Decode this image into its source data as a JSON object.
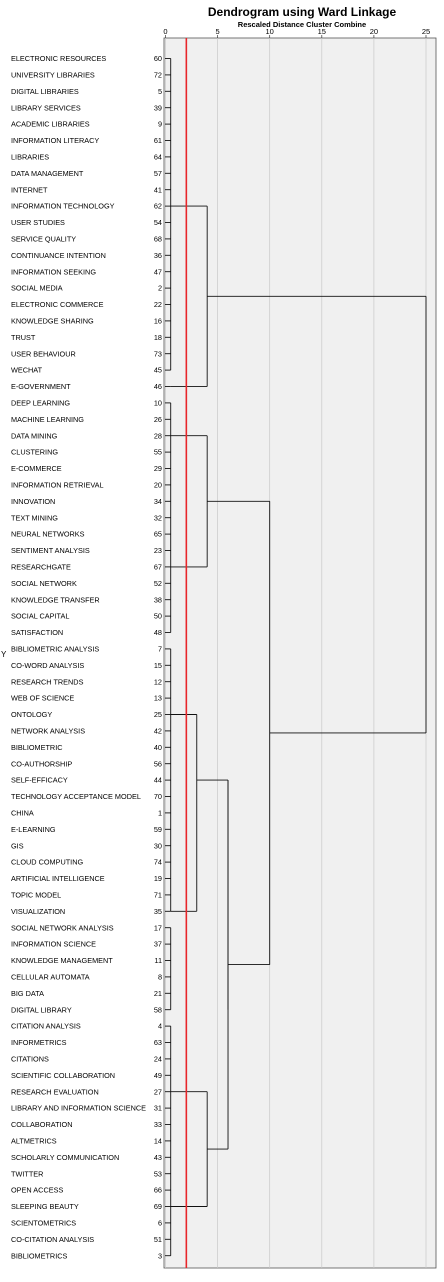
{
  "chart_data": {
    "type": "dendrogram",
    "title": "Dendrogram using Ward Linkage",
    "subtitle": "Rescaled Distance Cluster Combine",
    "ylabel": "Y",
    "xlim": [
      0,
      25
    ],
    "xticks": [
      "0",
      "5",
      "10",
      "15",
      "20",
      "25"
    ],
    "grid": true,
    "reference_line_x": 2,
    "reference_line_color": "#e8262b",
    "leaves": [
      {
        "label": "ELECTRONIC RESOURCES",
        "id": "60"
      },
      {
        "label": "UNIVERSITY LIBRARIES",
        "id": "72"
      },
      {
        "label": "DIGITAL LIBRARIES",
        "id": "5"
      },
      {
        "label": "LIBRARY SERVICES",
        "id": "39"
      },
      {
        "label": "ACADEMIC LIBRARIES",
        "id": "9"
      },
      {
        "label": "INFORMATION LITERACY",
        "id": "61"
      },
      {
        "label": "LIBRARIES",
        "id": "64"
      },
      {
        "label": "DATA MANAGEMENT",
        "id": "57"
      },
      {
        "label": "INTERNET",
        "id": "41"
      },
      {
        "label": "INFORMATION TECHNOLOGY",
        "id": "62"
      },
      {
        "label": "USER STUDIES",
        "id": "54"
      },
      {
        "label": "SERVICE QUALITY",
        "id": "68"
      },
      {
        "label": "CONTINUANCE INTENTION",
        "id": "36"
      },
      {
        "label": "INFORMATION SEEKING",
        "id": "47"
      },
      {
        "label": "SOCIAL MEDIA",
        "id": "2"
      },
      {
        "label": "ELECTRONIC COMMERCE",
        "id": "22"
      },
      {
        "label": "KNOWLEDGE SHARING",
        "id": "16"
      },
      {
        "label": "TRUST",
        "id": "18"
      },
      {
        "label": "USER BEHAVIOUR",
        "id": "73"
      },
      {
        "label": "WECHAT",
        "id": "45"
      },
      {
        "label": "E-GOVERNMENT",
        "id": "46"
      },
      {
        "label": "DEEP LEARNING",
        "id": "10"
      },
      {
        "label": "MACHINE LEARNING",
        "id": "26"
      },
      {
        "label": "DATA MINING",
        "id": "28"
      },
      {
        "label": "CLUSTERING",
        "id": "55"
      },
      {
        "label": "E-COMMERCE",
        "id": "29"
      },
      {
        "label": "INFORMATION RETRIEVAL",
        "id": "20"
      },
      {
        "label": "INNOVATION",
        "id": "34"
      },
      {
        "label": "TEXT MINING",
        "id": "32"
      },
      {
        "label": "NEURAL NETWORKS",
        "id": "65"
      },
      {
        "label": "SENTIMENT ANALYSIS",
        "id": "23"
      },
      {
        "label": "RESEARCHGATE",
        "id": "67"
      },
      {
        "label": "SOCIAL NETWORK",
        "id": "52"
      },
      {
        "label": "KNOWLEDGE TRANSFER",
        "id": "38"
      },
      {
        "label": "SOCIAL CAPITAL",
        "id": "50"
      },
      {
        "label": "SATISFACTION",
        "id": "48"
      },
      {
        "label": "BIBLIOMETRIC ANALYSIS",
        "id": "7"
      },
      {
        "label": "CO-WORD ANALYSIS",
        "id": "15"
      },
      {
        "label": "RESEARCH TRENDS",
        "id": "12"
      },
      {
        "label": "WEB OF SCIENCE",
        "id": "13"
      },
      {
        "label": "ONTOLOGY",
        "id": "25"
      },
      {
        "label": "NETWORK ANALYSIS",
        "id": "42"
      },
      {
        "label": "BIBLIOMETRIC",
        "id": "40"
      },
      {
        "label": "CO-AUTHORSHIP",
        "id": "56"
      },
      {
        "label": "SELF-EFFICACY",
        "id": "44"
      },
      {
        "label": "TECHNOLOGY ACCEPTANCE MODEL",
        "id": "70"
      },
      {
        "label": "CHINA",
        "id": "1"
      },
      {
        "label": "E-LEARNING",
        "id": "59"
      },
      {
        "label": "GIS",
        "id": "30"
      },
      {
        "label": "CLOUD COMPUTING",
        "id": "74"
      },
      {
        "label": "ARTIFICIAL INTELLIGENCE",
        "id": "19"
      },
      {
        "label": "TOPIC MODEL",
        "id": "71"
      },
      {
        "label": "VISUALIZATION",
        "id": "35"
      },
      {
        "label": "SOCIAL NETWORK ANALYSIS",
        "id": "17"
      },
      {
        "label": "INFORMATION SCIENCE",
        "id": "37"
      },
      {
        "label": "KNOWLEDGE MANAGEMENT",
        "id": "11"
      },
      {
        "label": "CELLULAR AUTOMATA",
        "id": "8"
      },
      {
        "label": "BIG DATA",
        "id": "21"
      },
      {
        "label": "DIGITAL LIBRARY",
        "id": "58"
      },
      {
        "label": "CITATION ANALYSIS",
        "id": "4"
      },
      {
        "label": "INFORMETRICS",
        "id": "63"
      },
      {
        "label": "CITATIONS",
        "id": "24"
      },
      {
        "label": "SCIENTIFIC COLLABORATION",
        "id": "49"
      },
      {
        "label": "RESEARCH EVALUATION",
        "id": "27"
      },
      {
        "label": "LIBRARY AND INFORMATION SCIENCE",
        "id": "31"
      },
      {
        "label": "COLLABORATION",
        "id": "33"
      },
      {
        "label": "ALTMETRICS",
        "id": "14"
      },
      {
        "label": "SCHOLARLY COMMUNICATION",
        "id": "43"
      },
      {
        "label": "TWITTER",
        "id": "53"
      },
      {
        "label": "OPEN ACCESS",
        "id": "66"
      },
      {
        "label": "SLEEPING BEAUTY",
        "id": "69"
      },
      {
        "label": "SCIENTOMETRICS",
        "id": "6"
      },
      {
        "label": "CO-CITATION ANALYSIS",
        "id": "51"
      },
      {
        "label": "BIBLIOMETRICS",
        "id": "3"
      }
    ],
    "merges": [
      {
        "first": 0,
        "last": 19,
        "height": 0.5
      },
      {
        "first": 20,
        "last": 20,
        "height": 0.5
      },
      {
        "first": 0,
        "last": 20,
        "height": 4
      },
      {
        "first": 21,
        "last": 35,
        "height": 0.5
      },
      {
        "first": 21,
        "last": 35,
        "height": 4
      },
      {
        "first": 0,
        "last": 35,
        "height": 25
      },
      {
        "first": 36,
        "last": 52,
        "height": 0.5
      },
      {
        "first": 36,
        "last": 52,
        "height": 3
      },
      {
        "first": 53,
        "last": 58,
        "height": 0.5
      },
      {
        "first": 53,
        "last": 58,
        "height": 6
      },
      {
        "first": 59,
        "last": 73,
        "height": 0.5
      },
      {
        "first": 59,
        "last": 73,
        "height": 4
      },
      {
        "first": 36,
        "last": 73,
        "height": 10
      }
    ]
  }
}
